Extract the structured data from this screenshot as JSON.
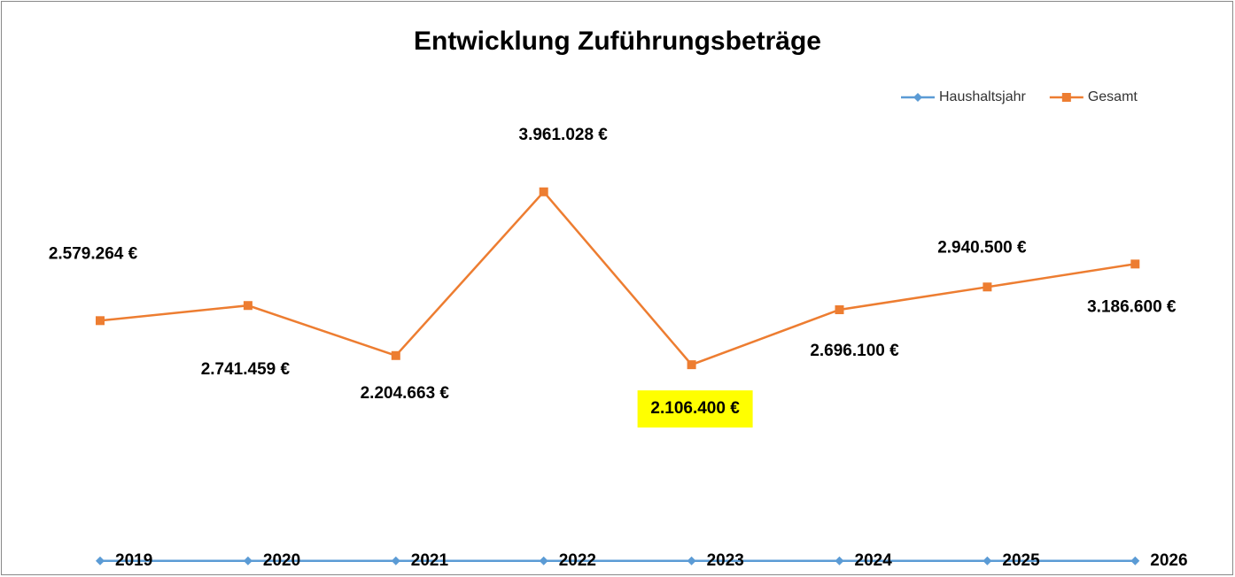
{
  "chart_data": {
    "type": "line",
    "title": "Entwicklung Zuführungsbeträge",
    "series": [
      {
        "name": "Haushaltsjahr",
        "color": "#5b9bd5",
        "marker": "diamond",
        "values": [
          2019,
          2020,
          2021,
          2022,
          2023,
          2024,
          2025,
          2026
        ]
      },
      {
        "name": "Gesamt",
        "color": "#ed7d31",
        "marker": "square",
        "values": [
          2579264,
          2741459,
          2204663,
          3961028,
          2106400,
          2696100,
          2940500,
          3186600
        ],
        "value_labels": [
          "2.579.264 €",
          "2.741.459 €",
          "2.204.663 €",
          "3.961.028 €",
          "2.106.400 €",
          "2.696.100 €",
          "2.940.500 €",
          "3.186.600 €"
        ]
      }
    ],
    "ylim": [
      0,
      4500000
    ],
    "legend": "top-right"
  }
}
